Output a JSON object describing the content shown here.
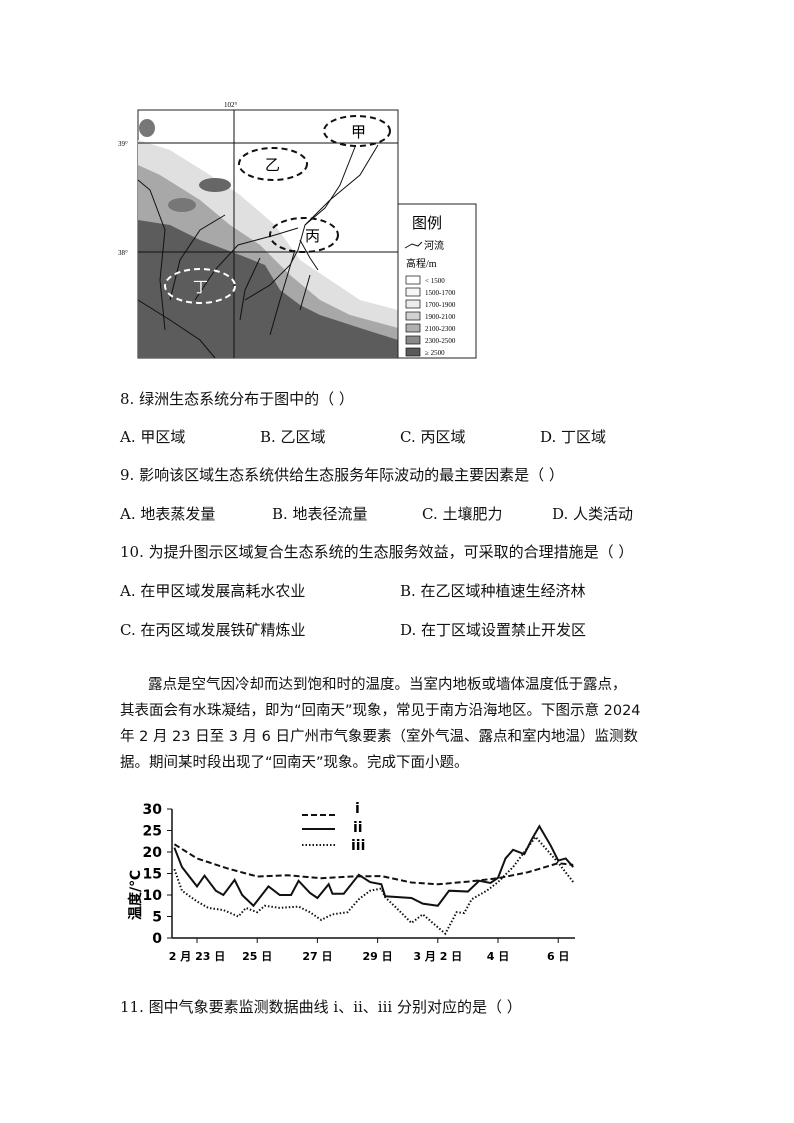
{
  "map": {
    "lon_label": "102°",
    "lat_labels": [
      "39°",
      "38°"
    ],
    "regions": [
      "甲",
      "乙",
      "丙",
      "丁"
    ],
    "legend": {
      "title": "图例",
      "river": "河流",
      "elev_title": "高程/m",
      "classes": [
        "< 1500",
        "1500-1700",
        "1700-1900",
        "1900-2100",
        "2100-2300",
        "2300-2500",
        "≥ 2500"
      ],
      "colors": [
        "#ffffff",
        "#f6f6f6",
        "#ececec",
        "#d2d2d2",
        "#b0b0b0",
        "#8a8a8a",
        "#5a5a5a"
      ]
    }
  },
  "questions": [
    {
      "stem": "8. 绿洲生态系统分布于图中的（    ）",
      "options": [
        "A. 甲区域",
        "B. 乙区域",
        "C. 丙区域",
        "D. 丁区域"
      ]
    },
    {
      "stem": "9. 影响该区域生态系统供给生态服务年际波动的最主要因素是（    ）",
      "options": [
        "A. 地表蒸发量",
        "B. 地表径流量",
        "C. 土壤肥力",
        "D. 人类活动"
      ]
    },
    {
      "stem": "10. 为提升图示区域复合生态系统的生态服务效益，可采取的合理措施是（    ）",
      "options": [
        "A. 在甲区域发展高耗水农业",
        "B. 在乙区域种植速生经济林",
        "C. 在丙区域发展铁矿精炼业",
        "D. 在丁区域设置禁止开发区"
      ]
    }
  ],
  "passage": [
    "露点是空气因冷却而达到饱和时的温度。当室内地板或墙体温度低于露点，",
    "其表面会有水珠凝结，即为“回南天”现象，常见于南方沿海地区。下图示意 2024",
    "年 2 月 23 日至 3 月 6 日广州市气象要素（室外气温、露点和室内地温）监测数",
    "据。期间某时段出现了“回南天”现象。完成下面小题。"
  ],
  "chart_data": {
    "type": "line",
    "ylabel": "温度/℃",
    "ylim": [
      0,
      30
    ],
    "yticks": [
      "0",
      "5",
      "10",
      "15",
      "20",
      "25",
      "30"
    ],
    "xtick_labels": [
      "2 月 23 日",
      "25 日",
      "27 日",
      "29 日",
      "3 月 2 日",
      "4 日",
      "6 日"
    ],
    "xtick_dates": [
      "02-23",
      "02-25",
      "02-27",
      "02-29",
      "03-02",
      "03-04",
      "03-06"
    ],
    "legend_placement": "top-center",
    "series": [
      {
        "name": "i",
        "style": "dashed",
        "points": [
          [
            "02-22 06:00",
            21.8
          ],
          [
            "02-23 00:00",
            18.5
          ],
          [
            "02-24 00:00",
            16.2
          ],
          [
            "02-25 00:00",
            14.3
          ],
          [
            "02-26 00:00",
            14.6
          ],
          [
            "02-27 03:00",
            13.9
          ],
          [
            "02-28 03:00",
            14.3
          ],
          [
            "02-29 03:00",
            14.4
          ],
          [
            "03-01 03:00",
            12.9
          ],
          [
            "03-02 00:00",
            12.5
          ],
          [
            "03-03 00:00",
            13.1
          ],
          [
            "03-04 00:00",
            13.9
          ],
          [
            "03-05 00:00",
            15.3
          ],
          [
            "03-06 00:00",
            17.4
          ],
          [
            "03-06 12:00",
            17
          ]
        ]
      },
      {
        "name": "ii",
        "style": "solid",
        "points": [
          [
            "02-22 06:00",
            21
          ],
          [
            "02-22 12:00",
            16.5
          ],
          [
            "02-23 00:00",
            12
          ],
          [
            "02-23 06:00",
            14.5
          ],
          [
            "02-23 15:00",
            11
          ],
          [
            "02-23 21:00",
            10
          ],
          [
            "02-24 06:00",
            13.5
          ],
          [
            "02-24 12:00",
            10
          ],
          [
            "02-24 21:00",
            7.5
          ],
          [
            "02-25 09:00",
            12
          ],
          [
            "02-25 18:00",
            10
          ],
          [
            "02-26 03:00",
            10
          ],
          [
            "02-26 09:00",
            13.3
          ],
          [
            "02-26 18:00",
            10.5
          ],
          [
            "02-27 00:00",
            9.3
          ],
          [
            "02-27 09:00",
            12.5
          ],
          [
            "02-27 12:00",
            10.3
          ],
          [
            "02-27 21:00",
            10.3
          ],
          [
            "02-28 09:00",
            14.7
          ],
          [
            "02-28 18:00",
            13
          ],
          [
            "02-29 03:00",
            12.5
          ],
          [
            "02-29 06:00",
            9.7
          ],
          [
            "03-01 03:00",
            9.3
          ],
          [
            "03-01 12:00",
            8
          ],
          [
            "03-02 00:00",
            7.5
          ],
          [
            "03-02 09:00",
            11
          ],
          [
            "03-03 00:00",
            10.8
          ],
          [
            "03-03 09:00",
            13.3
          ],
          [
            "03-03 18:00",
            12.8
          ],
          [
            "03-04 00:00",
            14
          ],
          [
            "03-04 06:00",
            18.5
          ],
          [
            "03-04 12:00",
            20.5
          ],
          [
            "03-04 21:00",
            19.5
          ],
          [
            "03-05 03:00",
            23
          ],
          [
            "03-05 09:00",
            26
          ],
          [
            "03-05 18:00",
            21.5
          ],
          [
            "03-06 00:00",
            18
          ],
          [
            "03-06 06:00",
            18.5
          ],
          [
            "03-06 12:00",
            16.5
          ]
        ]
      },
      {
        "name": "iii",
        "style": "dotted",
        "points": [
          [
            "02-22 06:00",
            16
          ],
          [
            "02-22 12:00",
            11
          ],
          [
            "02-23 00:00",
            8.5
          ],
          [
            "02-23 09:00",
            7
          ],
          [
            "02-23 21:00",
            6.5
          ],
          [
            "02-24 09:00",
            5
          ],
          [
            "02-24 15:00",
            7
          ],
          [
            "02-25 00:00",
            6
          ],
          [
            "02-25 06:00",
            7.5
          ],
          [
            "02-25 18:00",
            7
          ],
          [
            "02-26 09:00",
            7.3
          ],
          [
            "02-26 18:00",
            6
          ],
          [
            "02-27 03:00",
            4.2
          ],
          [
            "02-27 12:00",
            5.5
          ],
          [
            "02-28 00:00",
            6
          ],
          [
            "02-28 09:00",
            9
          ],
          [
            "02-28 18:00",
            11
          ],
          [
            "02-29 03:00",
            11.5
          ],
          [
            "02-29 06:00",
            9.5
          ],
          [
            "02-29 15:00",
            7
          ],
          [
            "03-01 03:00",
            3.5
          ],
          [
            "03-01 12:00",
            5.5
          ],
          [
            "03-02 00:00",
            2.5
          ],
          [
            "03-02 06:00",
            1
          ],
          [
            "03-02 15:00",
            6
          ],
          [
            "03-02 21:00",
            5.8
          ],
          [
            "03-03 03:00",
            9
          ],
          [
            "03-03 15:00",
            11
          ],
          [
            "03-04 00:00",
            13
          ],
          [
            "03-04 12:00",
            16.5
          ],
          [
            "03-05 06:00",
            23.5
          ],
          [
            "03-06 00:00",
            17.5
          ],
          [
            "03-06 12:00",
            13
          ]
        ]
      }
    ]
  },
  "q11": {
    "stem": "11. 图中气象要素监测数据曲线 i、ii、iii 分别对应的是（    ）"
  }
}
